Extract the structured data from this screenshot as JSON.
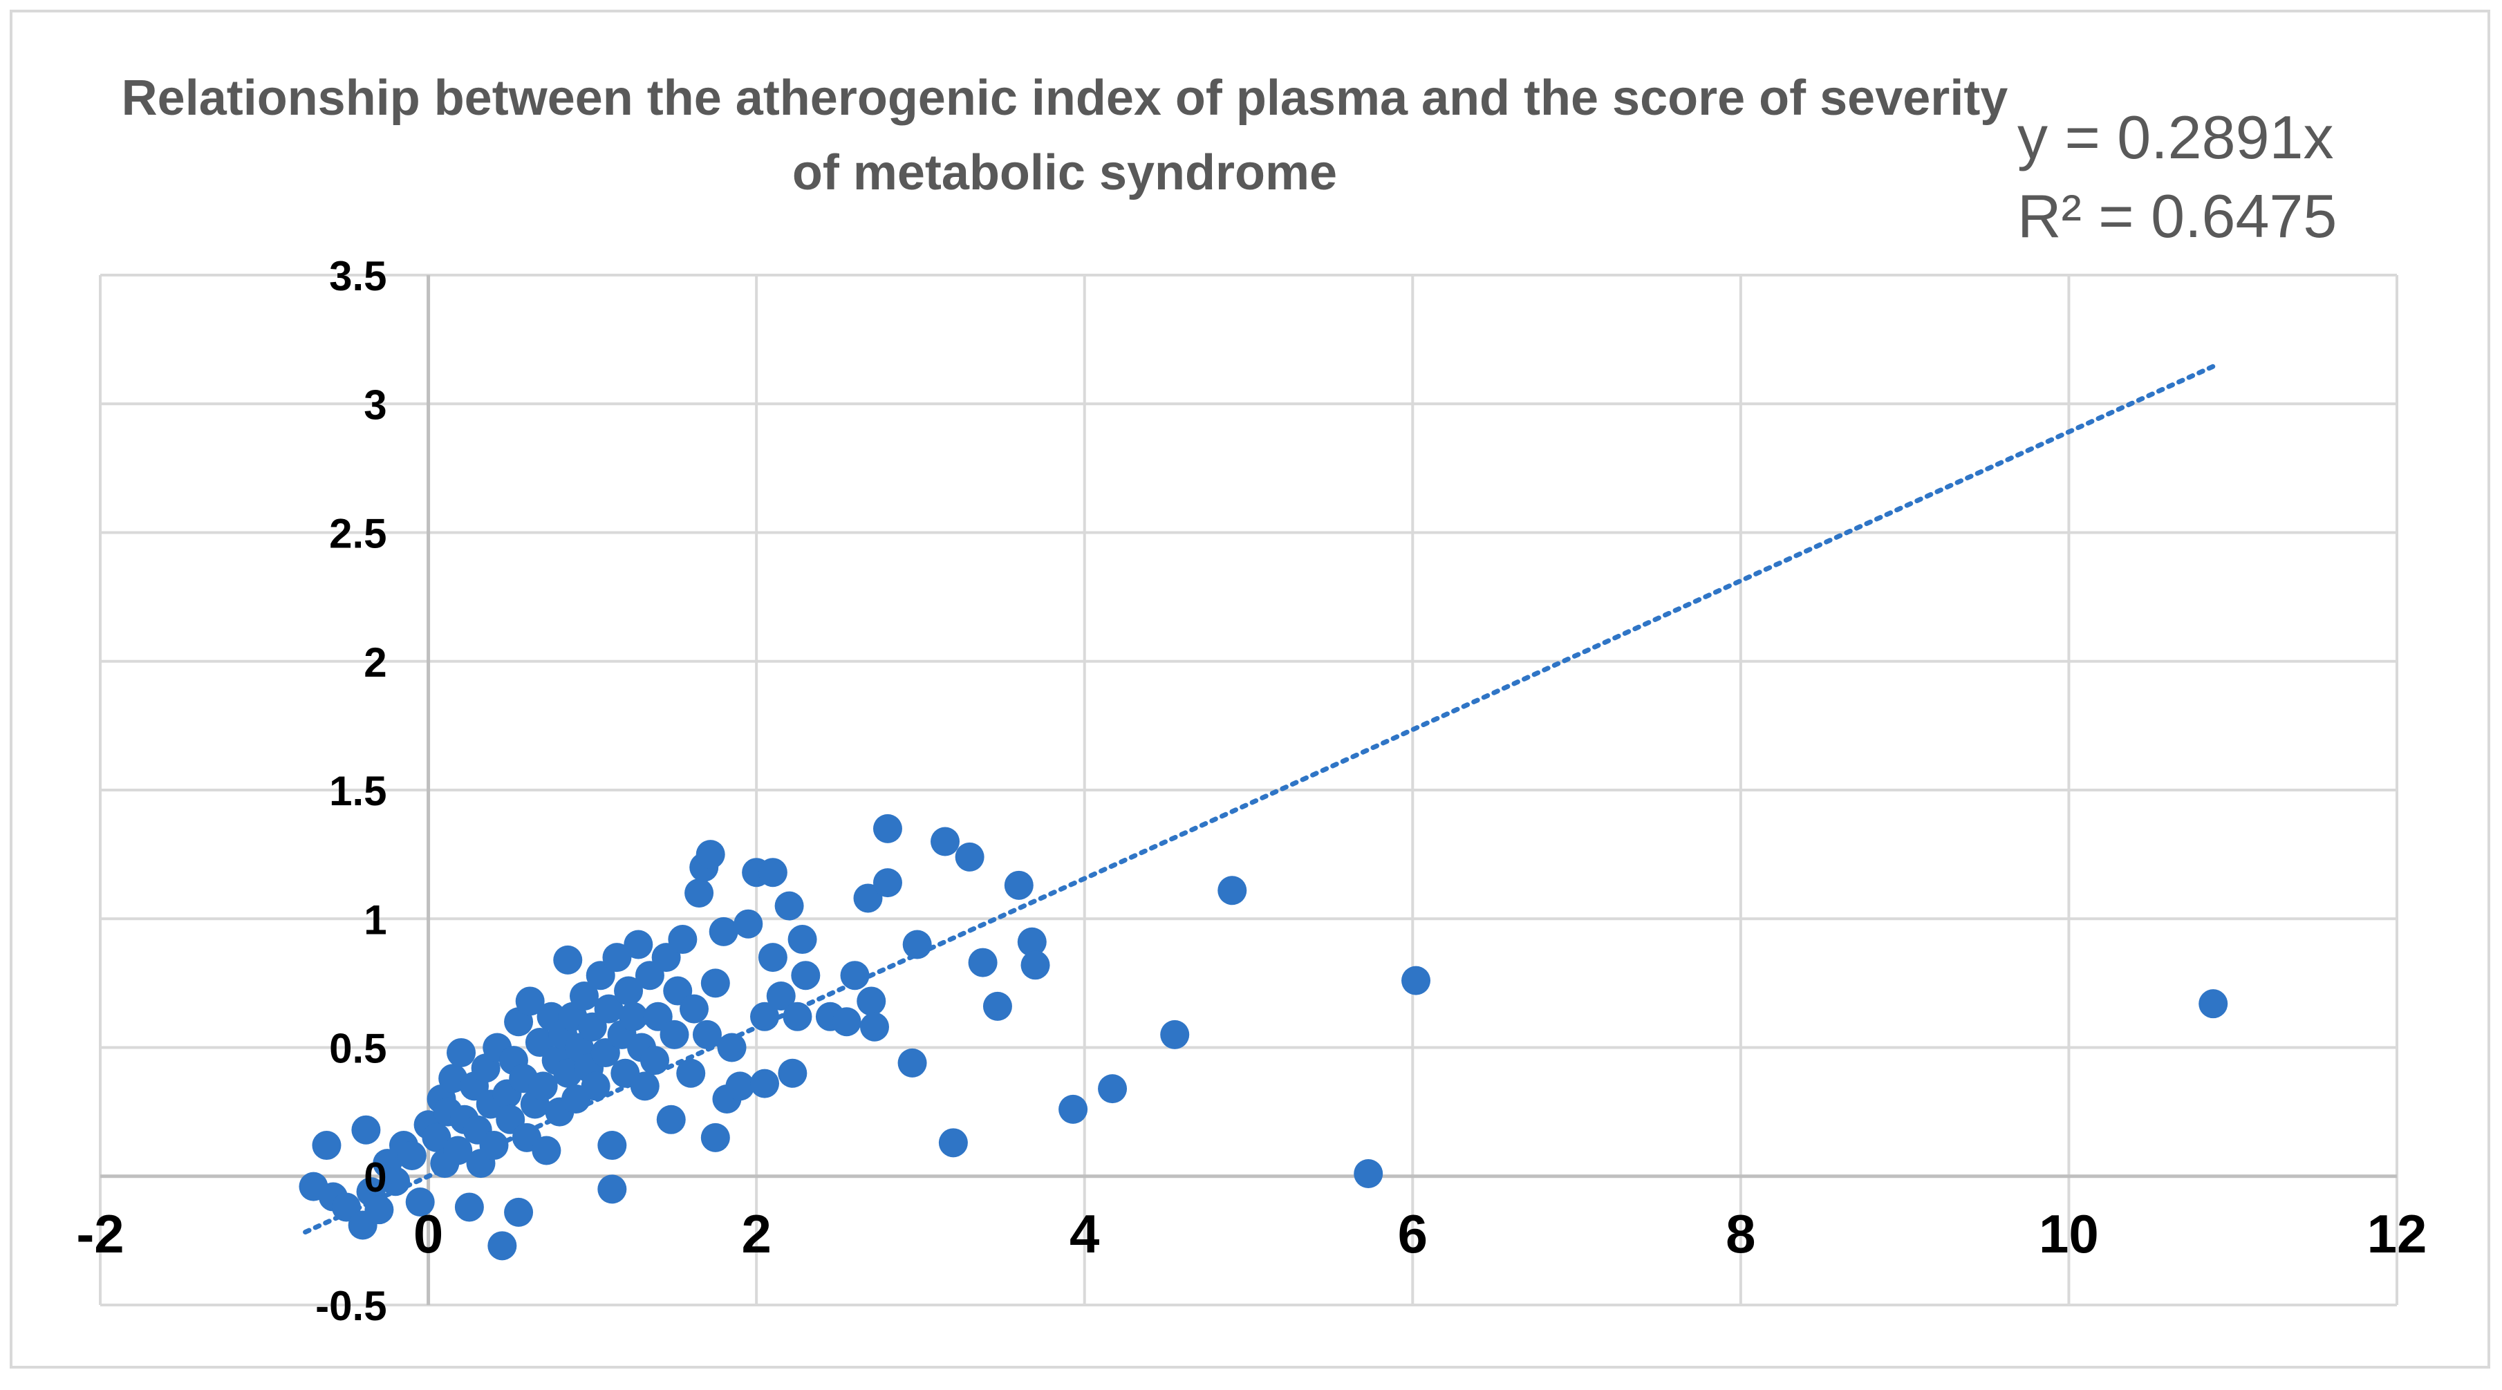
{
  "chart_data": {
    "type": "scatter",
    "title": "Relationship between the atherogenic index of plasma and the  score of severity of metabolic syndrome",
    "xlabel": "",
    "ylabel": "",
    "xlim": [
      -2,
      12
    ],
    "ylim": [
      -0.5,
      3.5
    ],
    "x_ticks": [
      -2,
      0,
      2,
      4,
      6,
      8,
      10,
      12
    ],
    "y_ticks": [
      -0.5,
      0,
      0.5,
      1,
      1.5,
      2,
      2.5,
      3,
      3.5
    ],
    "x_tick_labels": [
      "-2",
      "0",
      "2",
      "4",
      "6",
      "8",
      "10",
      "12"
    ],
    "y_tick_labels": [
      "-0.5",
      "0",
      "0.5",
      "1",
      "1.5",
      "2",
      "2.5",
      "3",
      "3.5"
    ],
    "grid": true,
    "legend": "none",
    "marker_color": "#2f75c6",
    "trendline": {
      "type": "linear-through-origin",
      "slope": 0.2891,
      "x_range": [
        -0.75,
        10.9
      ],
      "style": "dotted",
      "color": "#2f75c6",
      "equation": "y = 0.2891x",
      "r_squared": "R² = 0.6475"
    },
    "points": [
      [
        -0.7,
        -0.04
      ],
      [
        -0.62,
        0.12
      ],
      [
        -0.58,
        -0.08
      ],
      [
        -0.5,
        -0.12
      ],
      [
        -0.4,
        -0.19
      ],
      [
        -0.38,
        0.18
      ],
      [
        -0.35,
        -0.06
      ],
      [
        -0.3,
        -0.13
      ],
      [
        -0.25,
        0.05
      ],
      [
        -0.2,
        -0.02
      ],
      [
        -0.15,
        0.12
      ],
      [
        -0.1,
        0.08
      ],
      [
        -0.05,
        -0.1
      ],
      [
        0.0,
        0.2
      ],
      [
        0.05,
        0.15
      ],
      [
        0.08,
        0.3
      ],
      [
        0.1,
        0.05
      ],
      [
        0.12,
        0.25
      ],
      [
        0.15,
        0.38
      ],
      [
        0.18,
        0.1
      ],
      [
        0.2,
        0.48
      ],
      [
        0.22,
        0.22
      ],
      [
        0.25,
        -0.12
      ],
      [
        0.28,
        0.35
      ],
      [
        0.3,
        0.18
      ],
      [
        0.32,
        0.05
      ],
      [
        0.35,
        0.42
      ],
      [
        0.38,
        0.28
      ],
      [
        0.4,
        0.12
      ],
      [
        0.42,
        0.5
      ],
      [
        0.45,
        -0.27
      ],
      [
        0.48,
        0.32
      ],
      [
        0.5,
        0.22
      ],
      [
        0.52,
        0.45
      ],
      [
        0.55,
        0.6
      ],
      [
        0.55,
        -0.14
      ],
      [
        0.58,
        0.38
      ],
      [
        0.6,
        0.15
      ],
      [
        0.62,
        0.68
      ],
      [
        0.65,
        0.28
      ],
      [
        0.68,
        0.52
      ],
      [
        0.7,
        0.35
      ],
      [
        0.72,
        0.1
      ],
      [
        0.75,
        0.62
      ],
      [
        0.78,
        0.45
      ],
      [
        0.8,
        0.25
      ],
      [
        0.82,
        0.55
      ],
      [
        0.85,
        0.4
      ],
      [
        0.85,
        0.84
      ],
      [
        0.88,
        0.62
      ],
      [
        0.9,
        0.3
      ],
      [
        0.92,
        0.5
      ],
      [
        0.95,
        0.7
      ],
      [
        0.98,
        0.42
      ],
      [
        1.0,
        0.58
      ],
      [
        1.02,
        0.35
      ],
      [
        1.05,
        0.78
      ],
      [
        1.08,
        0.48
      ],
      [
        1.1,
        0.65
      ],
      [
        1.12,
        0.12
      ],
      [
        1.12,
        -0.05
      ],
      [
        1.15,
        0.85
      ],
      [
        1.18,
        0.55
      ],
      [
        1.2,
        0.4
      ],
      [
        1.22,
        0.72
      ],
      [
        1.25,
        0.62
      ],
      [
        1.28,
        0.9
      ],
      [
        1.3,
        0.5
      ],
      [
        1.32,
        0.35
      ],
      [
        1.35,
        0.78
      ],
      [
        1.38,
        0.45
      ],
      [
        1.4,
        0.62
      ],
      [
        1.45,
        0.85
      ],
      [
        1.48,
        0.22
      ],
      [
        1.5,
        0.55
      ],
      [
        1.52,
        0.72
      ],
      [
        1.55,
        0.92
      ],
      [
        1.6,
        0.4
      ],
      [
        1.62,
        0.65
      ],
      [
        1.65,
        1.1
      ],
      [
        1.68,
        1.2
      ],
      [
        1.7,
        0.55
      ],
      [
        1.72,
        1.25
      ],
      [
        1.75,
        0.15
      ],
      [
        1.75,
        0.75
      ],
      [
        1.8,
        0.95
      ],
      [
        1.82,
        0.3
      ],
      [
        1.85,
        0.5
      ],
      [
        1.9,
        0.35
      ],
      [
        1.95,
        0.98
      ],
      [
        2.0,
        1.18
      ],
      [
        2.05,
        0.62
      ],
      [
        2.05,
        0.36
      ],
      [
        2.1,
        1.18
      ],
      [
        2.1,
        0.85
      ],
      [
        2.15,
        0.7
      ],
      [
        2.2,
        1.05
      ],
      [
        2.22,
        0.4
      ],
      [
        2.25,
        0.62
      ],
      [
        2.28,
        0.92
      ],
      [
        2.3,
        0.78
      ],
      [
        2.45,
        0.62
      ],
      [
        2.55,
        0.6
      ],
      [
        2.6,
        0.78
      ],
      [
        2.68,
        1.08
      ],
      [
        2.7,
        0.68
      ],
      [
        2.72,
        0.58
      ],
      [
        2.8,
        1.35
      ],
      [
        2.8,
        1.14
      ],
      [
        2.95,
        0.44
      ],
      [
        2.98,
        0.9
      ],
      [
        3.15,
        1.3
      ],
      [
        3.2,
        0.13
      ],
      [
        3.3,
        1.24
      ],
      [
        3.38,
        0.83
      ],
      [
        3.47,
        0.66
      ],
      [
        3.6,
        1.13
      ],
      [
        3.68,
        0.91
      ],
      [
        3.7,
        0.82
      ],
      [
        3.93,
        0.26
      ],
      [
        4.17,
        0.34
      ],
      [
        4.55,
        0.55
      ],
      [
        4.9,
        1.11
      ],
      [
        5.73,
        0.01
      ],
      [
        6.02,
        0.76
      ],
      [
        10.88,
        0.67
      ]
    ]
  }
}
